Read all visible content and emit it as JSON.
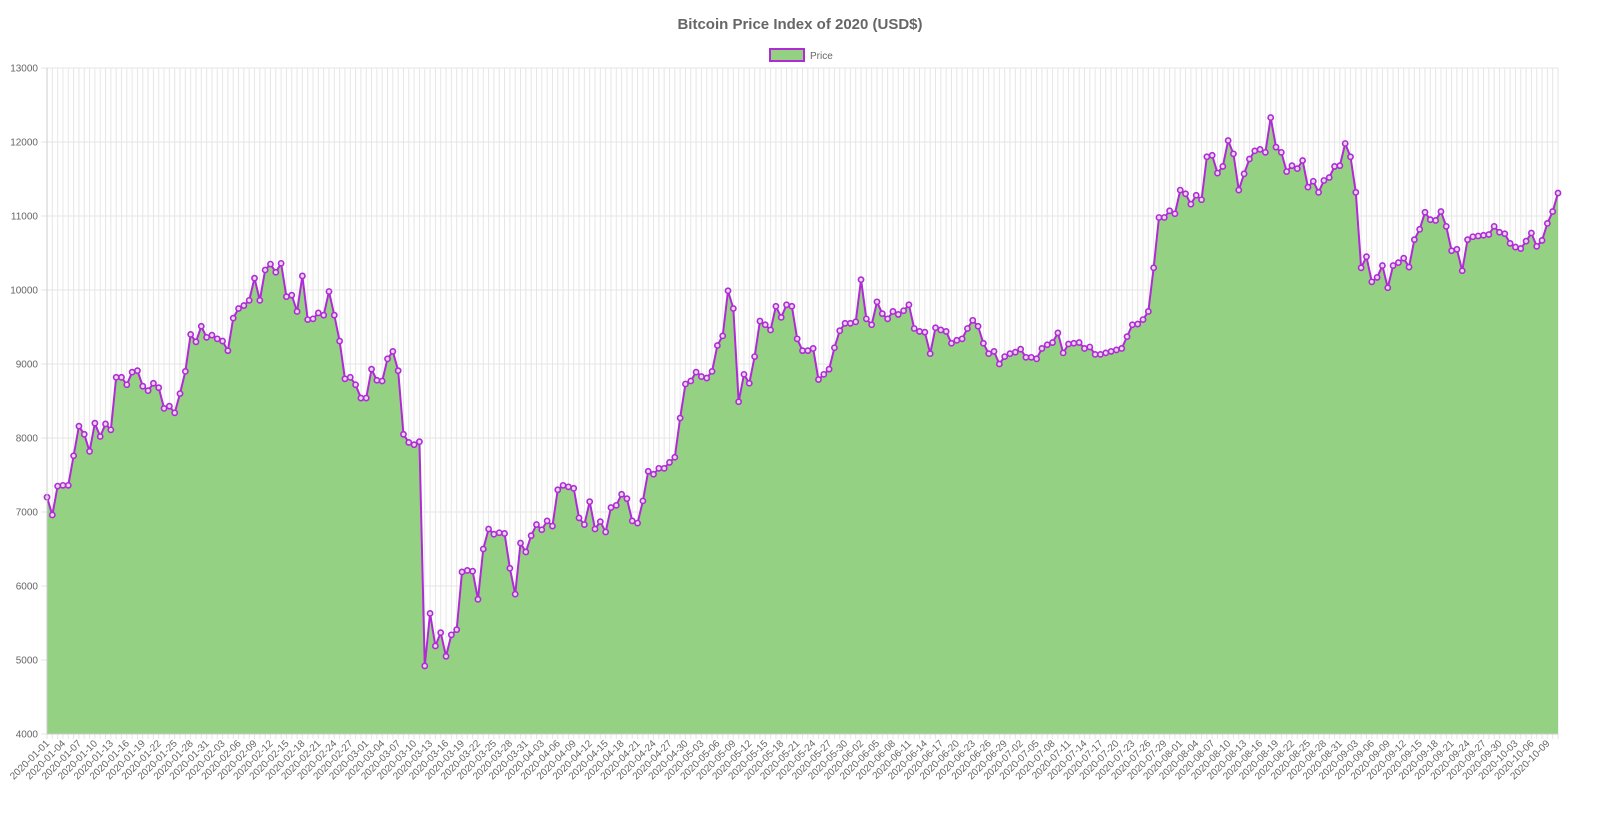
{
  "chart_data": {
    "type": "area",
    "title": "Bitcoin Price Index of 2020 (USD$)",
    "xlabel": "",
    "ylabel": "",
    "ylim": [
      4000,
      13000
    ],
    "yticks": [
      4000,
      5000,
      6000,
      7000,
      8000,
      9000,
      10000,
      11000,
      12000,
      13000
    ],
    "grid": true,
    "legend_position": "top-center",
    "colors": {
      "fill": "#95d183",
      "line": "#b02bd6",
      "grid": "#e6e6e6",
      "text": "#666666"
    },
    "start_date": "2020-01-01",
    "x_tick_step_days": 3,
    "series": [
      {
        "name": "Price",
        "values": [
          7200,
          6960,
          7350,
          7360,
          7360,
          7760,
          8160,
          8050,
          7820,
          8200,
          8020,
          8190,
          8110,
          8820,
          8820,
          8720,
          8890,
          8910,
          8700,
          8640,
          8740,
          8680,
          8400,
          8430,
          8340,
          8600,
          8900,
          9400,
          9300,
          9510,
          9360,
          9390,
          9340,
          9310,
          9180,
          9620,
          9750,
          9790,
          9860,
          10160,
          9860,
          10270,
          10350,
          10240,
          10360,
          9910,
          9930,
          9710,
          10190,
          9600,
          9610,
          9690,
          9660,
          9980,
          9660,
          9310,
          8800,
          8820,
          8720,
          8540,
          8540,
          8930,
          8780,
          8770,
          9070,
          9170,
          8910,
          8050,
          7940,
          7910,
          7950,
          4920,
          5630,
          5190,
          5370,
          5050,
          5340,
          5410,
          6190,
          6210,
          6200,
          5820,
          6500,
          6770,
          6700,
          6720,
          6710,
          6240,
          5890,
          6580,
          6460,
          6680,
          6830,
          6760,
          6880,
          6810,
          7300,
          7360,
          7340,
          7320,
          6920,
          6830,
          7140,
          6770,
          6870,
          6730,
          7060,
          7090,
          7240,
          7180,
          6880,
          6850,
          7150,
          7550,
          7510,
          7590,
          7590,
          7670,
          7740,
          8270,
          8730,
          8770,
          8890,
          8830,
          8810,
          8900,
          9250,
          9380,
          9990,
          9750,
          8490,
          8860,
          8740,
          9100,
          9580,
          9530,
          9460,
          9780,
          9630,
          9800,
          9780,
          9340,
          9180,
          9180,
          9210,
          8790,
          8860,
          8930,
          9220,
          9450,
          9550,
          9550,
          9570,
          10140,
          9610,
          9530,
          9840,
          9680,
          9610,
          9710,
          9670,
          9720,
          9800,
          9480,
          9440,
          9430,
          9140,
          9490,
          9460,
          9440,
          9280,
          9320,
          9340,
          9480,
          9590,
          9510,
          9280,
          9140,
          9170,
          9000,
          9100,
          9140,
          9160,
          9200,
          9090,
          9090,
          9070,
          9210,
          9260,
          9290,
          9420,
          9150,
          9270,
          9280,
          9290,
          9210,
          9230,
          9130,
          9130,
          9150,
          9170,
          9190,
          9210,
          9370,
          9530,
          9540,
          9600,
          9710,
          10300,
          10980,
          10980,
          11070,
          11030,
          11350,
          11300,
          11160,
          11280,
          11220,
          11800,
          11820,
          11580,
          11670,
          12020,
          11840,
          11350,
          11570,
          11770,
          11880,
          11900,
          11860,
          12330,
          11930,
          11860,
          11600,
          11680,
          11640,
          11750,
          11390,
          11470,
          11320,
          11480,
          11520,
          11670,
          11680,
          11980,
          11800,
          11320,
          10300,
          10450,
          10110,
          10170,
          10330,
          10030,
          10330,
          10370,
          10430,
          10310,
          10680,
          10820,
          11050,
          10950,
          10940,
          11060,
          10860,
          10530,
          10550,
          10260,
          10680,
          10720,
          10730,
          10740,
          10750,
          10860,
          10780,
          10760,
          10630,
          10580,
          10560,
          10660,
          10770,
          10590,
          10670,
          10900,
          11060,
          11310
        ]
      }
    ],
    "x_tick_labels": [
      "2020-01-01",
      "2020-01-04",
      "2020-01-07",
      "2020-01-10",
      "2020-01-13",
      "2020-01-16",
      "2020-01-19",
      "2020-01-22",
      "2020-01-25",
      "2020-01-28",
      "2020-01-31",
      "2020-02-03",
      "2020-02-06",
      "2020-02-09",
      "2020-02-12",
      "2020-02-15",
      "2020-02-18",
      "2020-02-21",
      "2020-02-24",
      "2020-02-27",
      "2020-03-01",
      "2020-03-04",
      "2020-03-07",
      "2020-03-10",
      "2020-03-13",
      "2020-03-16",
      "2020-03-19",
      "2020-03-22",
      "2020-03-25",
      "2020-03-28",
      "2020-03-31",
      "2020-04-03",
      "2020-04-06",
      "2020-04-09",
      "2020-04-12",
      "2020-04-15",
      "2020-04-18",
      "2020-04-21",
      "2020-04-24",
      "2020-04-27",
      "2020-04-30",
      "2020-05-03",
      "2020-05-06",
      "2020-05-09",
      "2020-05-12",
      "2020-05-15",
      "2020-05-18",
      "2020-05-21",
      "2020-05-24",
      "2020-05-27",
      "2020-05-30",
      "2020-06-02",
      "2020-06-05",
      "2020-06-08",
      "2020-06-11",
      "2020-06-14",
      "2020-06-17",
      "2020-06-20",
      "2020-06-23",
      "2020-06-26",
      "2020-06-29",
      "2020-07-02",
      "2020-07-05",
      "2020-07-08",
      "2020-07-11",
      "2020-07-14",
      "2020-07-17",
      "2020-07-20",
      "2020-07-23",
      "2020-07-26",
      "2020-07-29",
      "2020-08-01",
      "2020-08-04",
      "2020-08-07",
      "2020-08-10",
      "2020-08-13",
      "2020-08-16",
      "2020-08-19",
      "2020-08-22",
      "2020-08-25",
      "2020-08-28",
      "2020-08-31",
      "2020-09-03",
      "2020-09-06",
      "2020-09-09",
      "2020-09-12",
      "2020-09-15",
      "2020-09-18",
      "2020-09-21",
      "2020-09-24",
      "2020-09-27",
      "2020-09-30",
      "2020-10-03",
      "2020-10-06",
      "2020-10-09"
    ]
  }
}
